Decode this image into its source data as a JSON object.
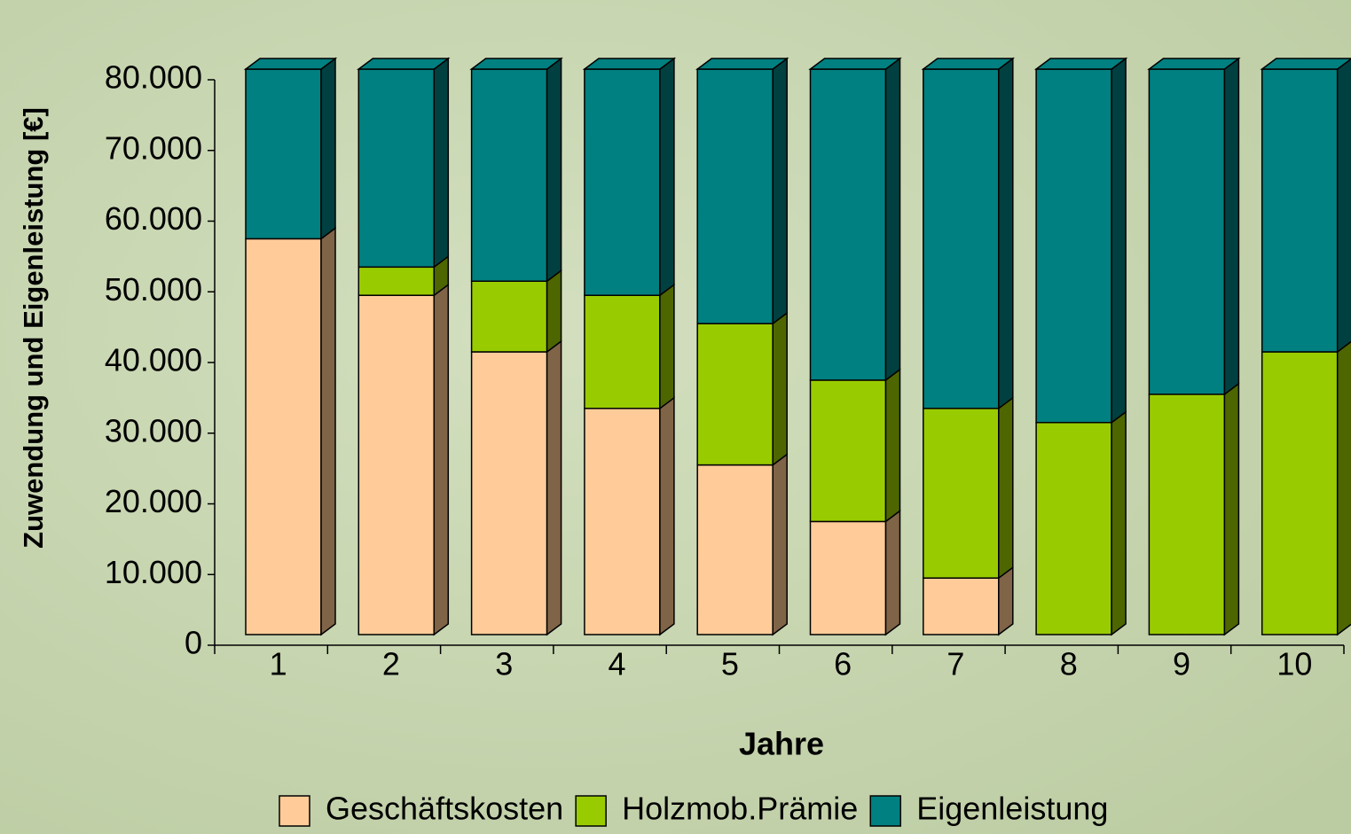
{
  "chart_data": {
    "type": "bar3d_stacked",
    "y_label": "Zuwendung und Eigenleistung [€]",
    "x_label": "Jahre",
    "categories": [
      "1",
      "2",
      "3",
      "4",
      "5",
      "6",
      "7",
      "8",
      "9",
      "10"
    ],
    "series": [
      {
        "name": "Geschäftskosten",
        "color": "#ffcc99",
        "side": "#806448",
        "values": [
          56000,
          48000,
          40000,
          32000,
          24000,
          16000,
          8000,
          0,
          0,
          0
        ]
      },
      {
        "name": "Holzmob.Prämie",
        "color": "#99cc00",
        "side": "#4d6600",
        "values": [
          0,
          4000,
          10000,
          16000,
          20000,
          20000,
          24000,
          30000,
          34000,
          40000
        ]
      },
      {
        "name": "Eigenleistung",
        "color": "#008080",
        "side": "#004040",
        "values": [
          24000,
          28000,
          30000,
          32000,
          36000,
          44000,
          48000,
          50000,
          46000,
          40000
        ]
      }
    ],
    "ylim": [
      0,
      80000
    ],
    "yticks": [
      0,
      {
        "value": 10000,
        "label": "10.000"
      },
      {
        "value": 20000,
        "label": "20.000"
      },
      {
        "value": 30000,
        "label": "30.000"
      },
      {
        "value": 40000,
        "label": "40.000"
      },
      {
        "value": 50000,
        "label": "50.000"
      },
      {
        "value": 60000,
        "label": "60.000"
      },
      {
        "value": 70000,
        "label": "70.000"
      },
      {
        "value": 80000,
        "label": "80.000"
      }
    ],
    "legend": "bottom"
  }
}
